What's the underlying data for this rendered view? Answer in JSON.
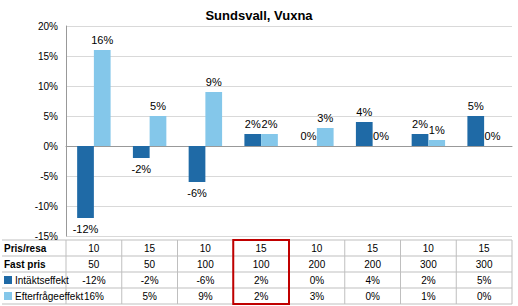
{
  "chart_data": {
    "type": "bar",
    "title": "Sundsvall, Vuxna",
    "table": {
      "rows": [
        {
          "label": "Pris/resa",
          "values": [
            10,
            15,
            10,
            15,
            10,
            15,
            10,
            15
          ]
        },
        {
          "label": "Fast pris",
          "values": [
            50,
            50,
            100,
            100,
            200,
            200,
            300,
            300
          ]
        }
      ]
    },
    "series": [
      {
        "name": "Intäktseffekt",
        "color": "#1f6aa6",
        "values": [
          -12,
          -2,
          -6,
          2,
          0,
          4,
          2,
          5
        ],
        "value_labels": [
          "-12%",
          "-2%",
          "-6%",
          "2%",
          "0%",
          "4%",
          "2%",
          "5%"
        ]
      },
      {
        "name": "Efterfrågeeffekt",
        "color": "#84c7ea",
        "values": [
          16,
          5,
          9,
          2,
          3,
          0,
          1,
          0
        ],
        "value_labels": [
          "16%",
          "5%",
          "9%",
          "2%",
          "3%",
          "0%",
          "1%",
          "0%"
        ]
      }
    ],
    "ylim": [
      -15,
      20
    ],
    "yticks": [
      {
        "value": -15,
        "label": "-15%"
      },
      {
        "value": -10,
        "label": "-10%"
      },
      {
        "value": -5,
        "label": "-5%"
      },
      {
        "value": 0,
        "label": "0%"
      },
      {
        "value": 5,
        "label": "5%"
      },
      {
        "value": 10,
        "label": "10%"
      },
      {
        "value": 15,
        "label": "15%"
      },
      {
        "value": 20,
        "label": "20%"
      }
    ],
    "grid": true,
    "data_labels": true,
    "highlighted_category": 3
  }
}
